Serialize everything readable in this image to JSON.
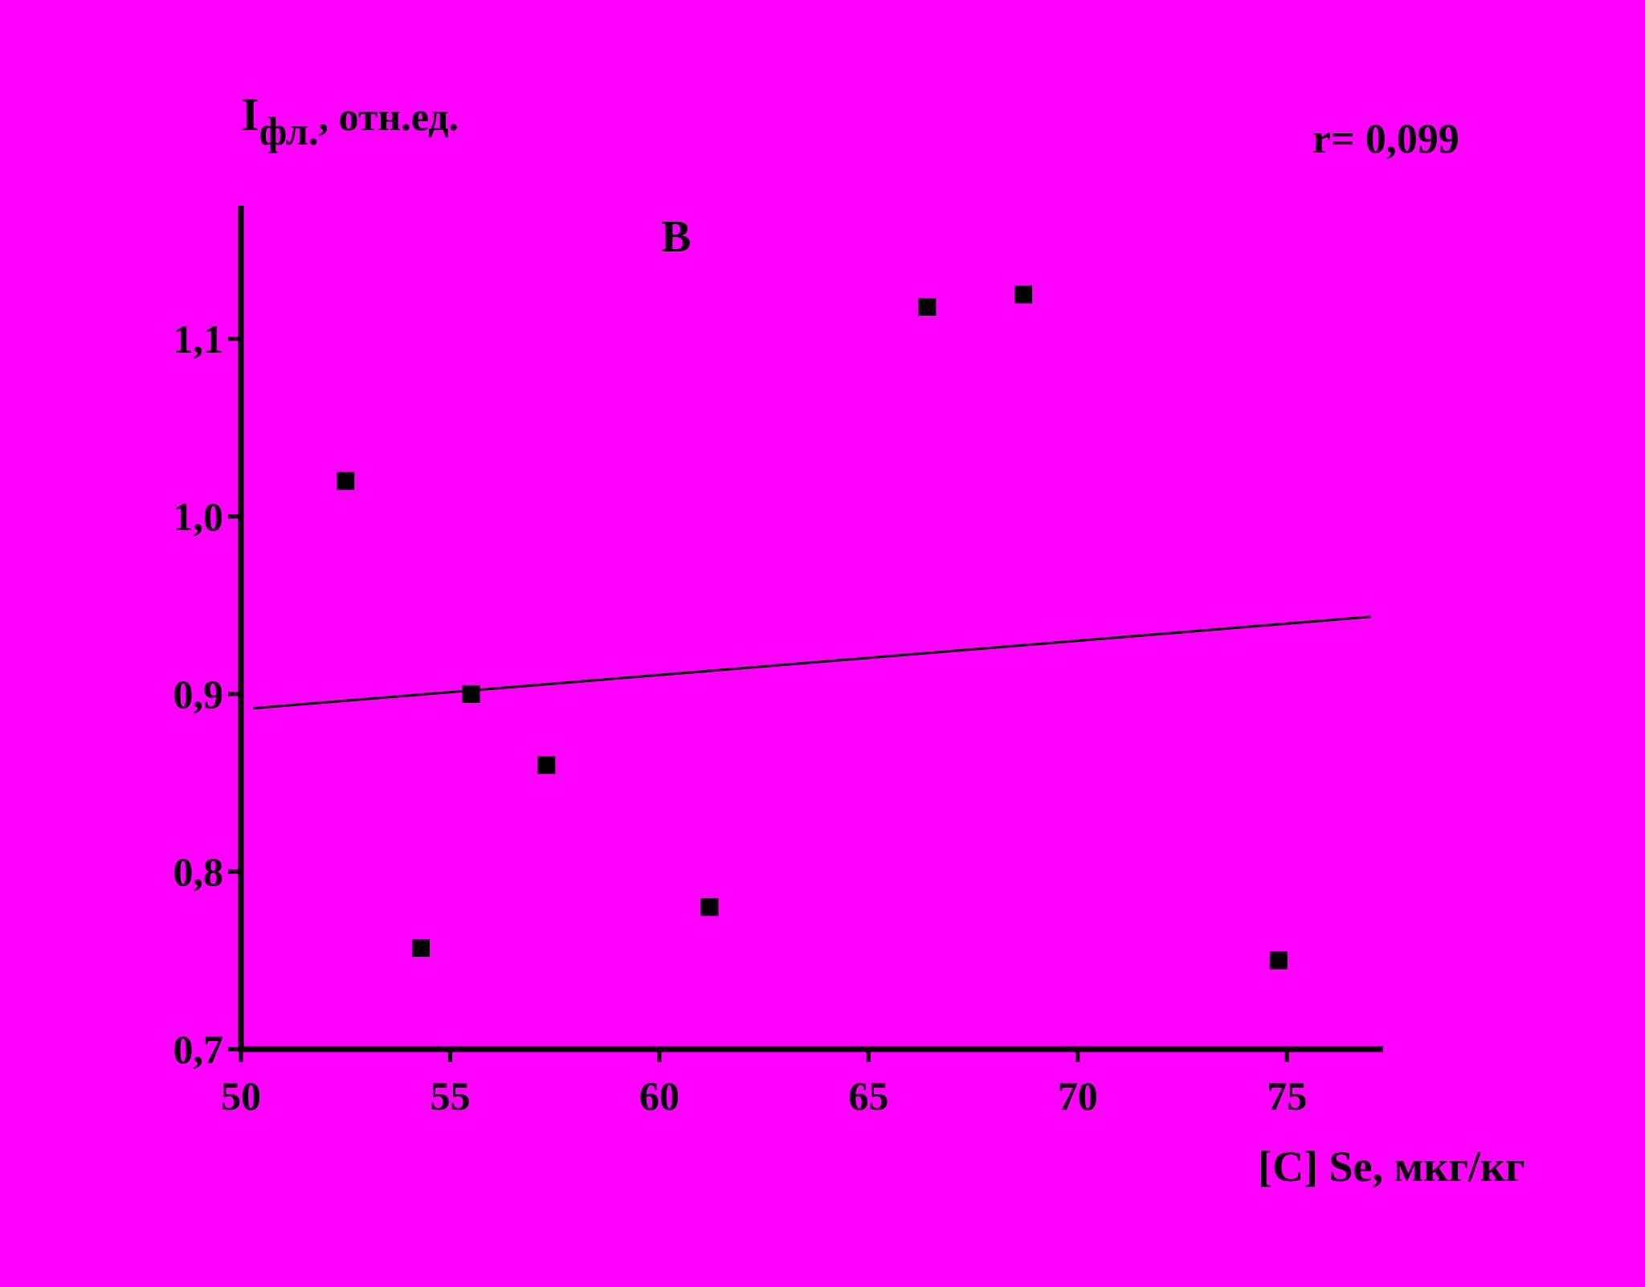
{
  "chart_data": {
    "type": "scatter",
    "panel_label": "В",
    "annotation": "r= 0,099",
    "ylabel_main": "I",
    "ylabel_sub": "фл.",
    "ylabel_rest": ", отн.ед.",
    "xlabel": "[C] Se, мкг/кг",
    "xlim": [
      50,
      77.3
    ],
    "ylim": [
      0.7,
      1.175
    ],
    "xticks": [
      50,
      55,
      60,
      65,
      70,
      75
    ],
    "xtick_labels": [
      "50",
      "55",
      "60",
      "65",
      "70",
      "75"
    ],
    "yticks": [
      0.7,
      0.8,
      0.9,
      1.0,
      1.1
    ],
    "ytick_labels": [
      "0,7",
      "0,8",
      "0,9",
      "1,0",
      "1,1"
    ],
    "points": [
      {
        "x": 52.5,
        "y": 1.02
      },
      {
        "x": 54.3,
        "y": 0.757
      },
      {
        "x": 55.5,
        "y": 0.9
      },
      {
        "x": 57.3,
        "y": 0.86
      },
      {
        "x": 61.2,
        "y": 0.78
      },
      {
        "x": 66.4,
        "y": 1.118
      },
      {
        "x": 68.7,
        "y": 1.125
      },
      {
        "x": 74.8,
        "y": 0.75
      }
    ],
    "fit_line": {
      "x1": 50.3,
      "y1": 0.892,
      "x2": 77.0,
      "y2": 0.9435
    },
    "grid": false,
    "colors": {
      "background": "#ff00ff",
      "ink": "#000000"
    }
  }
}
